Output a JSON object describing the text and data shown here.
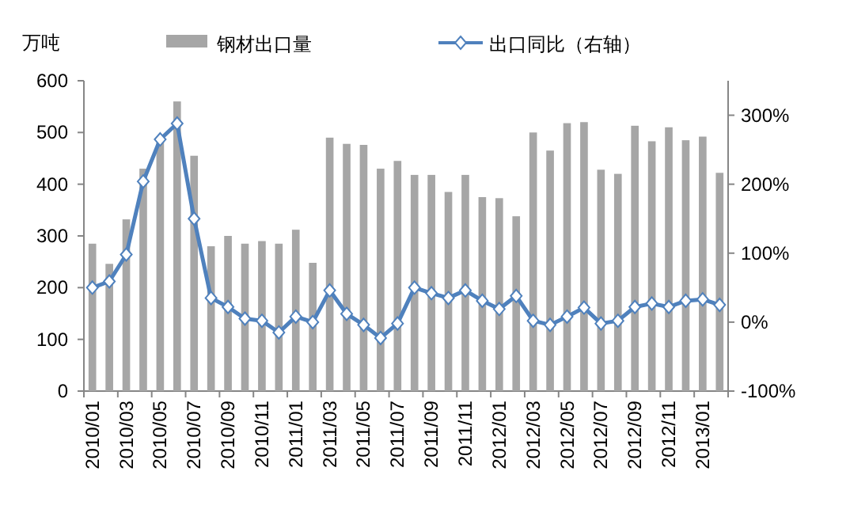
{
  "chart_data": {
    "type": "bar",
    "ylabel": "万吨",
    "categories": [
      "2010/01",
      null,
      "2010/03",
      null,
      "2010/05",
      null,
      "2010/07",
      null,
      "2010/09",
      null,
      "2010/11",
      null,
      "2011/01",
      null,
      "2011/03",
      null,
      "2011/05",
      null,
      "2011/07",
      null,
      "2011/09",
      null,
      "2011/11",
      null,
      "2012/01",
      null,
      "2012/03",
      null,
      "2012/05",
      null,
      "2012/07",
      null,
      "2012/09",
      null,
      "2012/11",
      null,
      "2013/01",
      null
    ],
    "series": [
      {
        "name": "钢材出口量",
        "color": "#a6a6a6",
        "values": [
          285,
          246,
          332,
          430,
          488,
          560,
          455,
          280,
          300,
          285,
          290,
          285,
          312,
          248,
          490,
          478,
          476,
          430,
          445,
          418,
          418,
          385,
          418,
          375,
          373,
          338,
          500,
          465,
          518,
          520,
          428,
          420,
          513,
          483,
          510,
          485,
          492,
          422
        ]
      },
      {
        "name": "出口同比（右轴）",
        "type": "line",
        "axis": "y2",
        "color": "#4f81bd",
        "marker": "diamond",
        "values": [
          50,
          59,
          98,
          204,
          265,
          288,
          150,
          35,
          22,
          5,
          2,
          -15,
          8,
          0,
          46,
          12,
          -4,
          -23,
          -2,
          50,
          42,
          35,
          46,
          31,
          19,
          38,
          2,
          -4,
          8,
          21,
          -2,
          2,
          22,
          27,
          22,
          31,
          33,
          25
        ]
      }
    ],
    "ylim": [
      0,
      600
    ],
    "yticks": [
      0,
      100,
      200,
      300,
      400,
      500,
      600
    ],
    "y2lim": [
      -100,
      350
    ],
    "y2ticks": [
      {
        "value": -100,
        "label": "-100%"
      },
      {
        "value": 0,
        "label": "0%"
      },
      {
        "value": 100,
        "label": "100%"
      },
      {
        "value": 200,
        "label": "200%"
      },
      {
        "value": 300,
        "label": "300%"
      }
    ],
    "legend": "top"
  }
}
